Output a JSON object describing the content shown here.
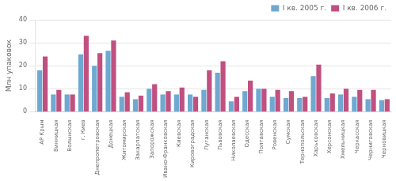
{
  "chart_data": {
    "type": "bar",
    "categories": [
      "АР Крым",
      "Винницкая",
      "Волынская",
      "г. Киев",
      "Днепропетровская",
      "Донецкая",
      "Житомирская",
      "Закарпатская",
      "Запорожская",
      "Ивано-Франковская",
      "Киевская",
      "Кировоградская",
      "Луганская",
      "Львовская",
      "Николаевская",
      "Одесская",
      "Полтавская",
      "Ровенская",
      "Сумская",
      "Тернопольская",
      "Харьковская",
      "Херсонская",
      "Хмельницкая",
      "Черкасская",
      "Черниговская",
      "Черновицкая"
    ],
    "series": [
      {
        "name": "I кв. 2005 г.",
        "color": "#6fa8d0",
        "values": [
          18,
          7.5,
          7.5,
          25,
          20,
          26.5,
          6.5,
          5.5,
          10,
          7.5,
          7.5,
          7.5,
          9.5,
          17,
          4.5,
          9,
          10,
          6.5,
          6,
          6,
          15.5,
          6,
          7.5,
          6.5,
          5.5,
          5
        ]
      },
      {
        "name": "I кв. 2006 г.",
        "color": "#c05080",
        "values": [
          24,
          9.5,
          7.5,
          33,
          25.5,
          31,
          8.5,
          7,
          12,
          9,
          10.5,
          6.5,
          18,
          22,
          6.5,
          13.5,
          10,
          9.5,
          9,
          6.5,
          20.5,
          8,
          10,
          9.5,
          9.5,
          5.5
        ]
      }
    ],
    "ylabel": "Млн упаковок",
    "ylim": [
      0,
      40
    ],
    "yticks": [
      0,
      10,
      20,
      30,
      40
    ],
    "grid": true,
    "legend": "upper right"
  }
}
